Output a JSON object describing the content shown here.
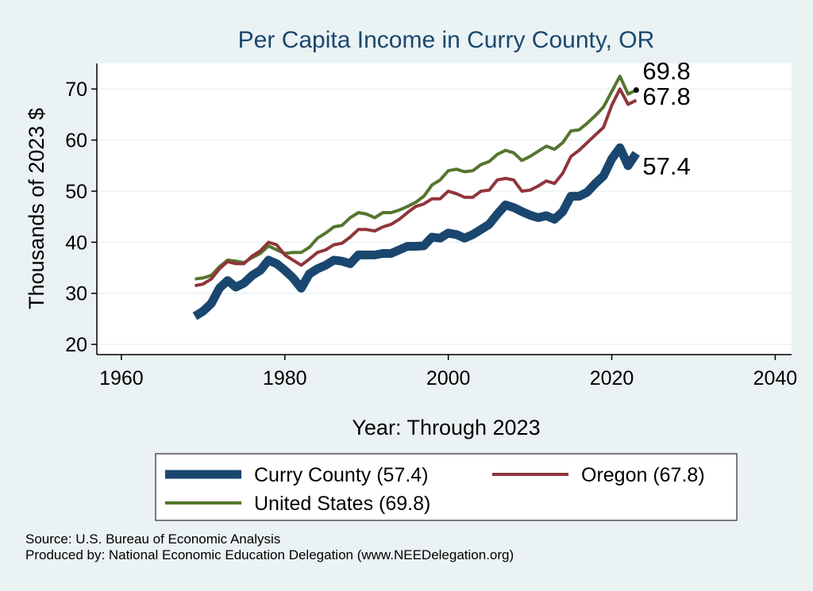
{
  "chart_data": {
    "type": "line",
    "title": "Per Capita Income in Curry County, OR",
    "xlabel": "Year: Through 2023",
    "ylabel": "Thousands of 2023 $",
    "xlim": [
      1957,
      2042
    ],
    "ylim": [
      18,
      75
    ],
    "xticks": [
      1960,
      1980,
      2000,
      2020,
      2040
    ],
    "yticks": [
      20,
      30,
      40,
      50,
      60,
      70
    ],
    "grid": true,
    "legend_position": "bottom",
    "x": [
      1969,
      1970,
      1971,
      1972,
      1973,
      1974,
      1975,
      1976,
      1977,
      1978,
      1979,
      1980,
      1981,
      1982,
      1983,
      1984,
      1985,
      1986,
      1987,
      1988,
      1989,
      1990,
      1991,
      1992,
      1993,
      1994,
      1995,
      1996,
      1997,
      1998,
      1999,
      2000,
      2001,
      2002,
      2003,
      2004,
      2005,
      2006,
      2007,
      2008,
      2009,
      2010,
      2011,
      2012,
      2013,
      2014,
      2015,
      2016,
      2017,
      2018,
      2019,
      2020,
      2021,
      2022,
      2023
    ],
    "series": [
      {
        "name": "Curry County (57.4)",
        "color": "#1a476f",
        "values": [
          25.5,
          26.5,
          28,
          31,
          32.5,
          31.2,
          32,
          33.5,
          34.5,
          36.5,
          35.8,
          34.5,
          33,
          31,
          33.8,
          34.8,
          35.5,
          36.5,
          36.3,
          35.8,
          37.5,
          37.5,
          37.5,
          37.8,
          37.8,
          38.5,
          39.2,
          39.2,
          39.3,
          41,
          40.8,
          41.8,
          41.5,
          40.8,
          41.5,
          42.5,
          43.5,
          45.5,
          47.3,
          46.8,
          46,
          45.3,
          44.8,
          45.2,
          44.5,
          46,
          49,
          49,
          49.8,
          51.5,
          53,
          56.3,
          58.5,
          55,
          57.4
        ]
      },
      {
        "name": "Oregon (67.8)",
        "color": "#90353b",
        "values": [
          31.5,
          31.8,
          32.8,
          34.8,
          36.2,
          35.8,
          35.8,
          37.3,
          38.3,
          40,
          39.5,
          37.5,
          36.5,
          35.5,
          36.7,
          38,
          38.5,
          39.5,
          39.8,
          41,
          42.5,
          42.5,
          42.2,
          43,
          43.5,
          44.5,
          45.8,
          47,
          47.5,
          48.5,
          48.5,
          50,
          49.5,
          48.8,
          48.8,
          50,
          50.2,
          52.2,
          52.5,
          52.2,
          50,
          50.2,
          51,
          52,
          51.5,
          53.5,
          56.8,
          58,
          59.5,
          61,
          62.5,
          66.8,
          70,
          67,
          67.8
        ]
      },
      {
        "name": "United States (69.8)",
        "color": "#55752f",
        "values": [
          32.8,
          33,
          33.5,
          35.2,
          36.5,
          36.3,
          36,
          37,
          37.8,
          39.3,
          38.5,
          37.8,
          38,
          38,
          39,
          40.8,
          41.8,
          43,
          43.3,
          44.8,
          45.8,
          45.5,
          44.8,
          45.8,
          45.8,
          46.3,
          47,
          47.8,
          49,
          51.2,
          52.2,
          54,
          54.3,
          53.8,
          54,
          55.2,
          55.8,
          57.2,
          58,
          57.5,
          56,
          56.8,
          57.8,
          58.8,
          58.2,
          59.5,
          61.8,
          62,
          63.3,
          64.8,
          66.5,
          69.5,
          72.5,
          69,
          69.8
        ]
      }
    ],
    "end_labels": [
      "69.8",
      "67.8",
      "57.4"
    ]
  },
  "source_line": "Source: U.S. Bureau of Economic Analysis",
  "produced_line": "Produced by: National Economic Education Delegation (www.NEEDelegation.org)"
}
